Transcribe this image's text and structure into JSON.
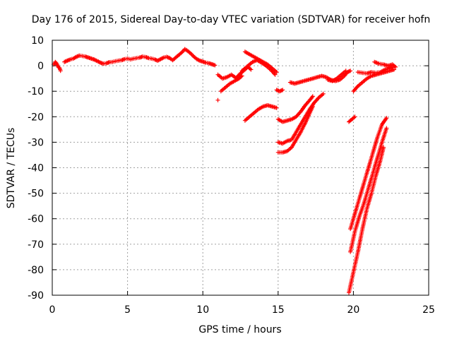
{
  "chart_data": {
    "type": "scatter",
    "title": "Day 176 of 2015, Sidereal Day-to-day VTEC variation (SDTVAR) for receiver hofn",
    "xlabel": "GPS time / hours",
    "ylabel": "SDTVAR / TECUs",
    "xlim": [
      0,
      25
    ],
    "ylim": [
      -90,
      10
    ],
    "xticks": [
      0,
      5,
      10,
      15,
      20,
      25
    ],
    "yticks": [
      10,
      0,
      -10,
      -20,
      -30,
      -40,
      -50,
      -60,
      -70,
      -80,
      -90
    ],
    "grid": true,
    "legend": "none",
    "marker": "plus",
    "color": "#ff0000",
    "series": [
      {
        "values": [
          [
            0.1,
            0.5
          ],
          [
            0.2,
            1.5
          ],
          [
            0.3,
            0.8
          ],
          [
            0.4,
            -0.5
          ],
          [
            0.5,
            -1.0
          ],
          [
            0.55,
            -2.0
          ]
        ]
      },
      {
        "values": [
          [
            0.8,
            1.5
          ],
          [
            1.0,
            2.0
          ],
          [
            1.2,
            2.5
          ],
          [
            1.4,
            2.8
          ],
          [
            1.6,
            3.5
          ],
          [
            1.8,
            4.0
          ],
          [
            2.0,
            3.8
          ],
          [
            2.2,
            3.6
          ],
          [
            2.4,
            3.2
          ],
          [
            2.6,
            2.8
          ],
          [
            2.8,
            2.4
          ],
          [
            3.0,
            1.8
          ],
          [
            3.2,
            1.2
          ],
          [
            3.4,
            0.8
          ],
          [
            3.6,
            1.0
          ],
          [
            3.8,
            1.4
          ],
          [
            4.0,
            1.5
          ],
          [
            4.2,
            1.8
          ],
          [
            4.4,
            2.0
          ],
          [
            4.6,
            2.2
          ],
          [
            4.8,
            2.6
          ],
          [
            5.0,
            2.8
          ],
          [
            5.2,
            2.5
          ],
          [
            5.4,
            2.8
          ],
          [
            5.6,
            3.0
          ],
          [
            5.8,
            3.2
          ],
          [
            6.0,
            3.6
          ],
          [
            6.2,
            3.4
          ],
          [
            6.4,
            3.0
          ],
          [
            6.6,
            2.8
          ],
          [
            6.8,
            2.5
          ],
          [
            7.0,
            2.0
          ],
          [
            7.2,
            2.6
          ],
          [
            7.4,
            3.2
          ],
          [
            7.6,
            3.5
          ],
          [
            7.8,
            3.0
          ],
          [
            8.0,
            2.2
          ],
          [
            8.2,
            3.2
          ],
          [
            8.4,
            4.2
          ],
          [
            8.6,
            5.2
          ],
          [
            8.8,
            6.5
          ],
          [
            9.0,
            5.8
          ],
          [
            9.2,
            4.8
          ],
          [
            9.4,
            3.6
          ],
          [
            9.6,
            2.6
          ],
          [
            9.8,
            2.0
          ],
          [
            10.0,
            1.6
          ],
          [
            10.2,
            1.2
          ],
          [
            10.4,
            1.0
          ],
          [
            10.6,
            0.6
          ],
          [
            10.8,
            0.2
          ]
        ]
      },
      {
        "values": [
          [
            11.0,
            -13.5
          ]
        ]
      },
      {
        "values": [
          [
            11.0,
            -3.5
          ],
          [
            11.3,
            -5.0
          ],
          [
            11.6,
            -4.5
          ],
          [
            11.9,
            -3.5
          ],
          [
            12.2,
            -4.8
          ],
          [
            12.5,
            -3.0
          ],
          [
            12.8,
            -1.5
          ],
          [
            13.0,
            -0.5
          ],
          [
            13.2,
            -1.5
          ]
        ]
      },
      {
        "values": [
          [
            11.2,
            -10.0
          ],
          [
            11.5,
            -8.5
          ],
          [
            11.8,
            -7.0
          ],
          [
            12.1,
            -6.0
          ],
          [
            12.4,
            -5.0
          ],
          [
            12.6,
            -4.0
          ]
        ]
      },
      {
        "values": [
          [
            12.8,
            5.5
          ],
          [
            13.1,
            4.5
          ],
          [
            13.4,
            3.5
          ],
          [
            13.7,
            2.5
          ],
          [
            14.0,
            1.5
          ],
          [
            14.3,
            0.5
          ],
          [
            14.6,
            -1.0
          ],
          [
            14.9,
            -2.5
          ]
        ]
      },
      {
        "values": [
          [
            12.6,
            -2.0
          ],
          [
            13.0,
            0.0
          ],
          [
            13.3,
            1.5
          ],
          [
            13.6,
            2.2
          ],
          [
            13.9,
            1.2
          ],
          [
            14.2,
            0.0
          ],
          [
            14.5,
            -1.5
          ],
          [
            14.8,
            -3.5
          ]
        ]
      },
      {
        "values": [
          [
            14.9,
            -9.5
          ],
          [
            15.1,
            -10.0
          ],
          [
            15.3,
            -9.5
          ]
        ]
      },
      {
        "values": [
          [
            12.8,
            -21.5
          ],
          [
            13.1,
            -20.0
          ],
          [
            13.4,
            -18.5
          ],
          [
            13.7,
            -17.0
          ],
          [
            14.0,
            -16.0
          ],
          [
            14.3,
            -15.5
          ],
          [
            14.6,
            -16.0
          ],
          [
            14.9,
            -16.5
          ]
        ]
      },
      {
        "values": [
          [
            15.0,
            -21.0
          ],
          [
            15.3,
            -22.0
          ],
          [
            15.6,
            -21.5
          ],
          [
            15.9,
            -21.0
          ],
          [
            16.2,
            -20.0
          ],
          [
            16.5,
            -18.0
          ],
          [
            16.8,
            -15.5
          ],
          [
            17.1,
            -13.5
          ],
          [
            17.3,
            -12.0
          ]
        ]
      },
      {
        "values": [
          [
            15.0,
            -30.0
          ],
          [
            15.3,
            -30.5
          ],
          [
            15.6,
            -29.5
          ],
          [
            15.9,
            -29.0
          ],
          [
            16.2,
            -26.0
          ],
          [
            16.5,
            -23.0
          ],
          [
            16.8,
            -20.0
          ],
          [
            17.1,
            -17.0
          ],
          [
            17.4,
            -14.5
          ],
          [
            17.7,
            -12.5
          ],
          [
            18.0,
            -11.0
          ]
        ]
      },
      {
        "values": [
          [
            15.0,
            -34.0
          ],
          [
            15.3,
            -34.0
          ],
          [
            15.6,
            -33.5
          ],
          [
            15.9,
            -32.0
          ],
          [
            16.2,
            -29.0
          ],
          [
            16.5,
            -26.0
          ],
          [
            16.8,
            -22.5
          ],
          [
            17.1,
            -18.5
          ],
          [
            17.3,
            -16.0
          ]
        ]
      },
      {
        "values": [
          [
            15.8,
            -6.5
          ],
          [
            16.1,
            -7.0
          ],
          [
            16.4,
            -6.5
          ],
          [
            16.7,
            -6.0
          ],
          [
            17.0,
            -5.5
          ],
          [
            17.3,
            -5.0
          ],
          [
            17.6,
            -4.5
          ],
          [
            17.9,
            -4.0
          ],
          [
            18.2,
            -4.5
          ],
          [
            18.5,
            -5.5
          ],
          [
            18.8,
            -6.0
          ],
          [
            19.1,
            -5.5
          ],
          [
            19.4,
            -4.0
          ],
          [
            19.6,
            -2.5
          ],
          [
            19.8,
            -2.0
          ]
        ]
      },
      {
        "values": [
          [
            18.3,
            -5.5
          ],
          [
            18.6,
            -6.0
          ],
          [
            18.9,
            -5.0
          ],
          [
            19.2,
            -3.5
          ],
          [
            19.5,
            -2.0
          ]
        ]
      },
      {
        "values": [
          [
            19.7,
            -22.0
          ],
          [
            19.9,
            -21.0
          ],
          [
            20.1,
            -20.0
          ]
        ]
      },
      {
        "values": [
          [
            19.8,
            -64.0
          ],
          [
            20.1,
            -58.0
          ],
          [
            20.4,
            -52.0
          ],
          [
            20.7,
            -46.0
          ],
          [
            21.0,
            -40.0
          ],
          [
            21.3,
            -34.0
          ],
          [
            21.6,
            -28.0
          ],
          [
            21.9,
            -23.0
          ],
          [
            22.2,
            -20.5
          ]
        ]
      },
      {
        "values": [
          [
            19.8,
            -73.0
          ],
          [
            20.1,
            -65.0
          ],
          [
            20.4,
            -59.0
          ],
          [
            20.7,
            -54.0
          ],
          [
            21.0,
            -48.0
          ],
          [
            21.3,
            -42.0
          ],
          [
            21.6,
            -36.0
          ],
          [
            21.9,
            -30.0
          ],
          [
            22.2,
            -24.5
          ]
        ]
      },
      {
        "values": [
          [
            19.7,
            -89.0
          ],
          [
            20.0,
            -81.0
          ],
          [
            20.3,
            -73.0
          ],
          [
            20.6,
            -64.0
          ],
          [
            20.9,
            -56.0
          ],
          [
            21.2,
            -50.0
          ],
          [
            21.5,
            -43.0
          ],
          [
            21.8,
            -37.0
          ],
          [
            22.0,
            -32.0
          ]
        ]
      },
      {
        "values": [
          [
            20.0,
            -10.0
          ],
          [
            20.3,
            -8.0
          ],
          [
            20.6,
            -6.5
          ],
          [
            20.9,
            -5.0
          ],
          [
            21.2,
            -4.0
          ],
          [
            21.5,
            -3.5
          ],
          [
            21.8,
            -3.0
          ],
          [
            22.1,
            -2.5
          ],
          [
            22.4,
            -2.0
          ],
          [
            22.7,
            -1.5
          ]
        ]
      },
      {
        "values": [
          [
            20.3,
            -2.5
          ],
          [
            20.6,
            -2.8
          ],
          [
            20.9,
            -3.0
          ],
          [
            21.2,
            -2.5
          ],
          [
            21.5,
            -2.8
          ],
          [
            21.8,
            -2.5
          ],
          [
            22.1,
            -1.5
          ],
          [
            22.4,
            -1.0
          ],
          [
            22.6,
            -0.5
          ]
        ]
      },
      {
        "values": [
          [
            21.4,
            1.5
          ],
          [
            21.7,
            0.8
          ],
          [
            22.0,
            0.5
          ],
          [
            22.3,
            0.0
          ],
          [
            22.6,
            0.5
          ],
          [
            22.8,
            -0.5
          ]
        ]
      }
    ]
  }
}
